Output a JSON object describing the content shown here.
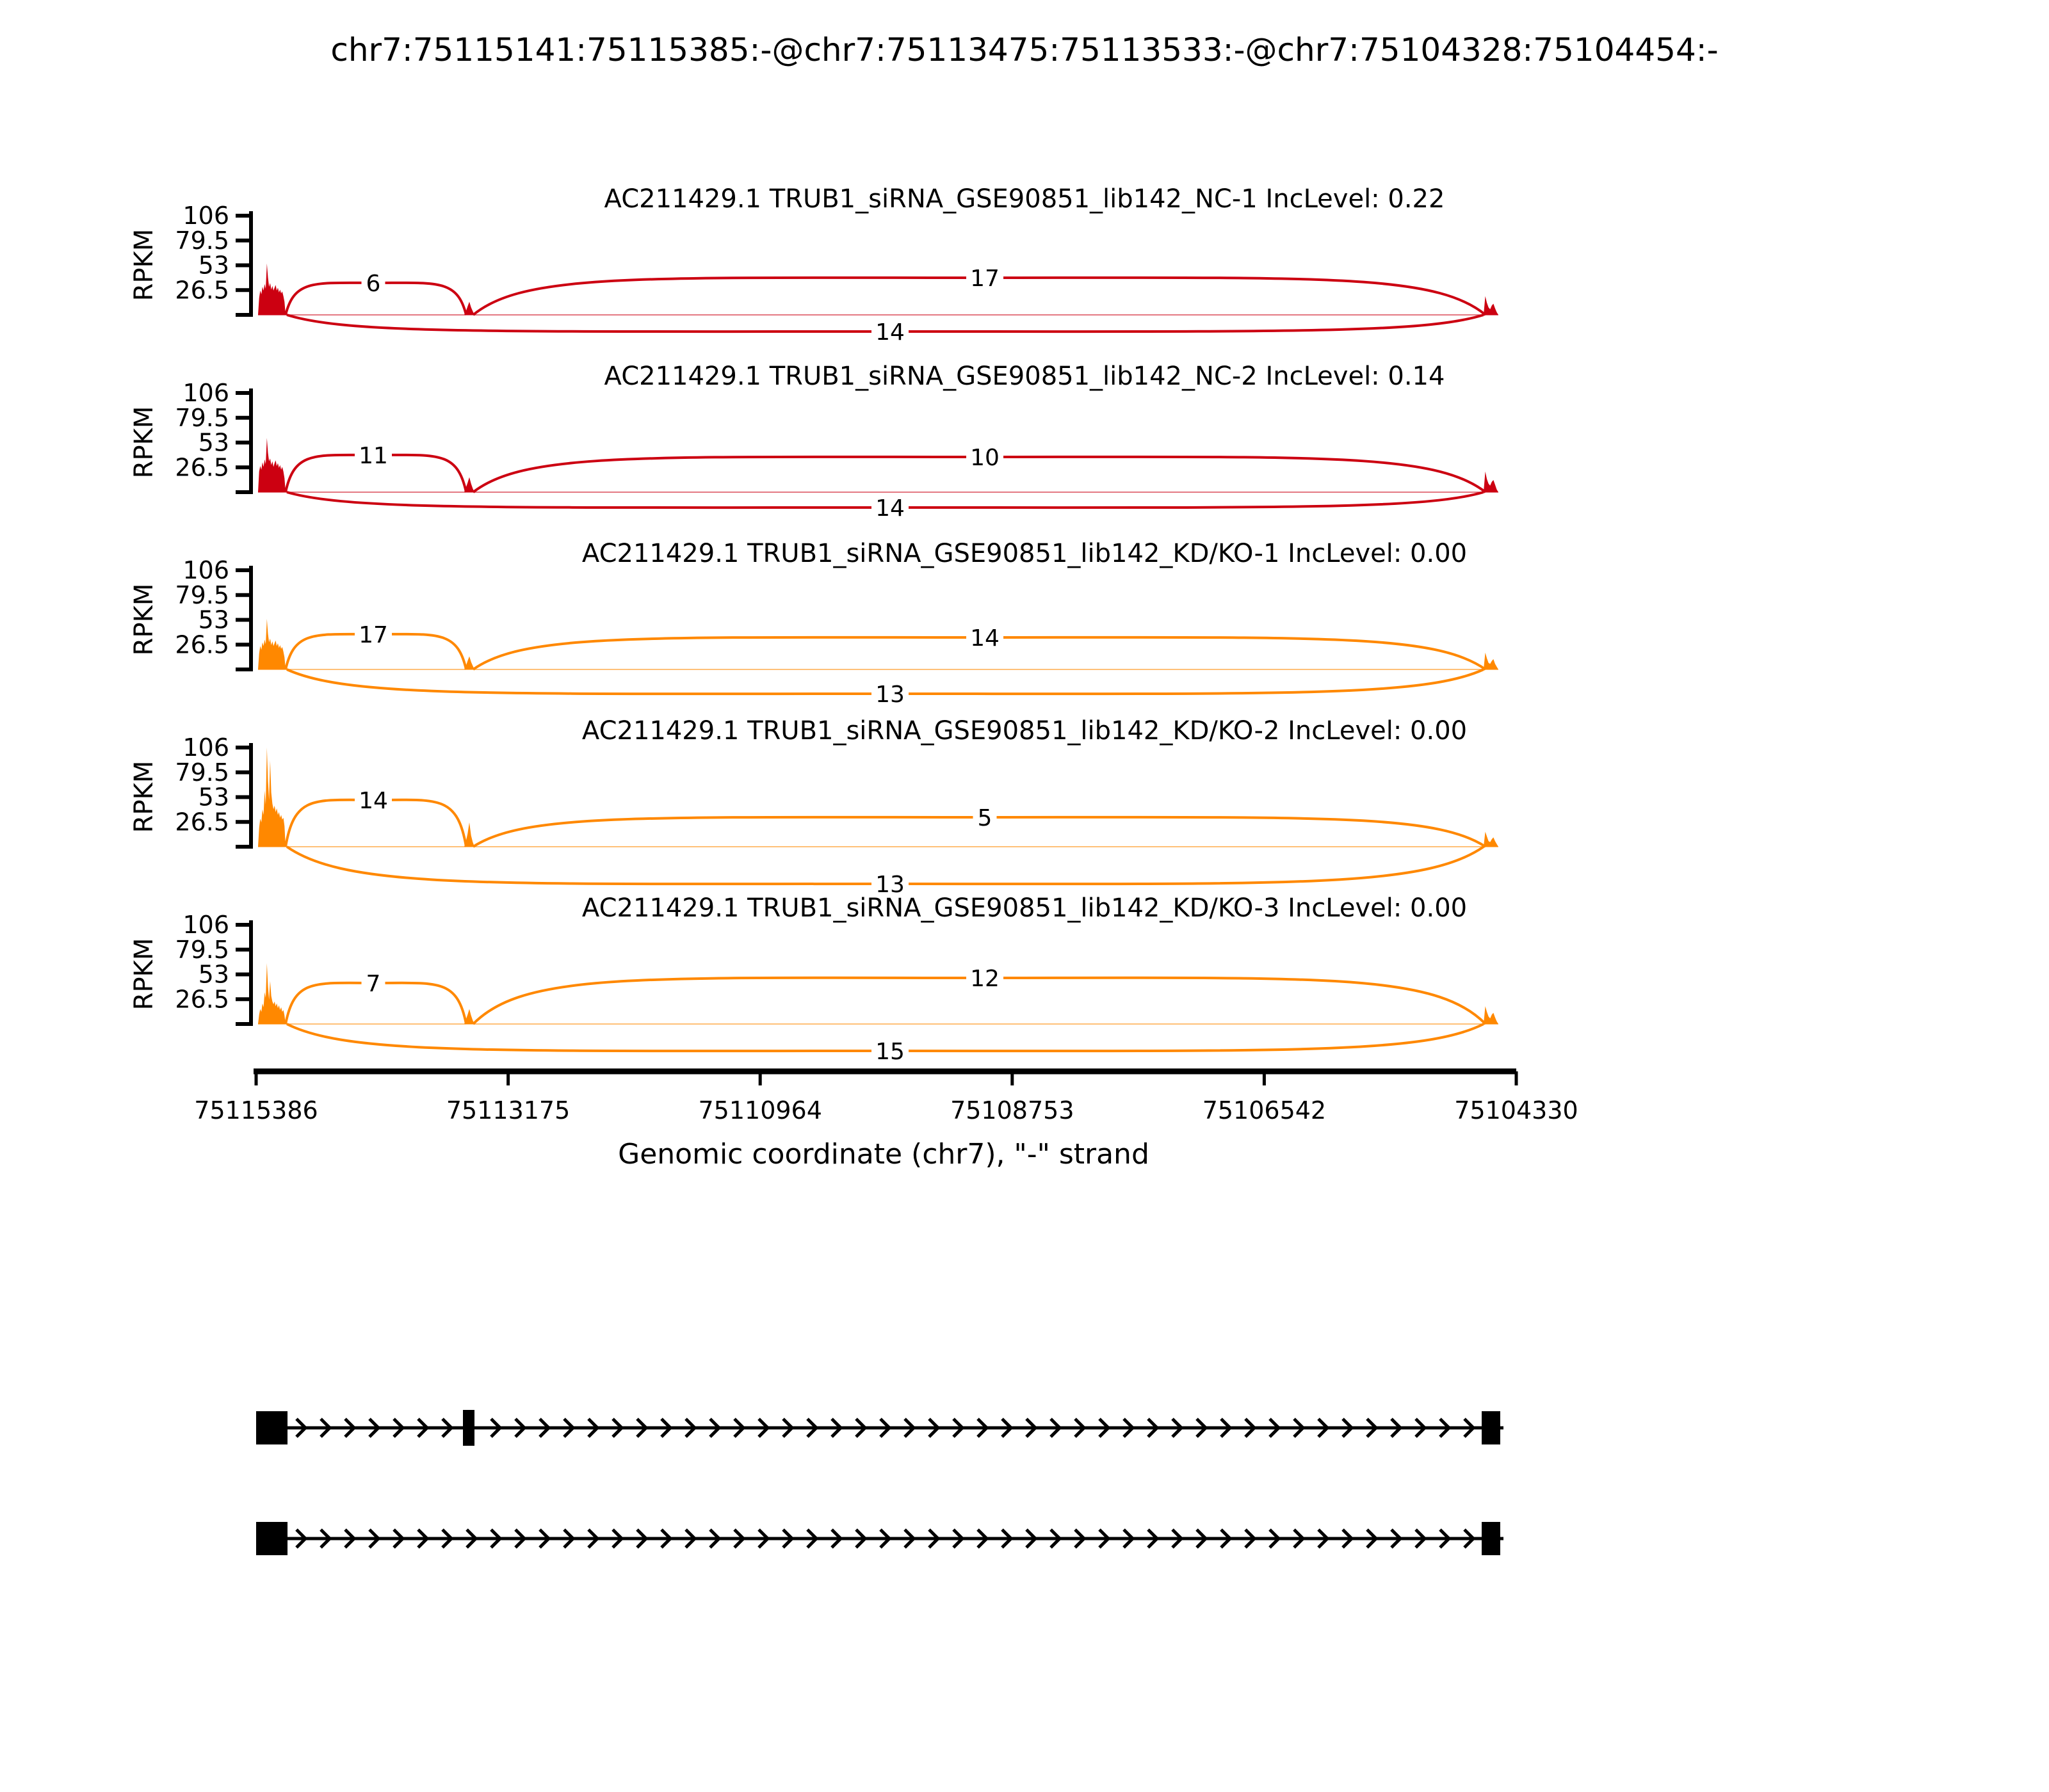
{
  "figure": {
    "background": "#ffffff",
    "axis_color": "#000000"
  },
  "chart_data": {
    "type": "area",
    "subtype": "sashimi-plot",
    "title": "chr7:75115141:75115385:-@chr7:75113475:75113533:-@chr7:75104328:75104454:-",
    "xlabel": "Genomic coordinate (chr7), \"-\" strand",
    "ylabel": "RPKM",
    "strand": "-",
    "chromosome": "chr7",
    "ymax": 106,
    "yticks": [
      26.5,
      53,
      79.5,
      106
    ],
    "xtick_labels": [
      "75115386",
      "75113175",
      "75110964",
      "75108753",
      "75106542",
      "75104330"
    ],
    "legend": "none",
    "grid": false,
    "colors": {
      "negative_control": "#CC0011",
      "knockdown": "#FF8800"
    },
    "tracks": [
      {
        "title": "AC211429.1 TRUB1_siRNA_GSE90851_lib142_NC-1 IncLevel: 0.22",
        "sample": "NC-1",
        "inc_level": "0.22",
        "color": "#CC0011",
        "junction_counts": {
          "e1_e2": "6",
          "e2_e3": "17",
          "e1_e3": "14"
        },
        "arc_heights": {
          "e1_e2": 50,
          "e2_e3": 58,
          "e1_e3": 26
        },
        "coverage_rpkm": {
          "e1": [
            0,
            18,
            26,
            22,
            30,
            26,
            33,
            28,
            55,
            40,
            30,
            34,
            27,
            31,
            26,
            29,
            32,
            26,
            29,
            24,
            27,
            23,
            25,
            20,
            14,
            0
          ],
          "e2": [
            0,
            4,
            9,
            14,
            8,
            4,
            0
          ],
          "e3": [
            0,
            20,
            13,
            8,
            6,
            10,
            12,
            7,
            3,
            0
          ]
        }
      },
      {
        "title": "AC211429.1 TRUB1_siRNA_GSE90851_lib142_NC-2 IncLevel: 0.14",
        "sample": "NC-2",
        "inc_level": "0.14",
        "color": "#CC0011",
        "junction_counts": {
          "e1_e2": "11",
          "e2_e3": "10",
          "e1_e3": "14"
        },
        "arc_heights": {
          "e1_e2": 58,
          "e2_e3": 55,
          "e1_e3": 24
        },
        "coverage_rpkm": {
          "e1": [
            0,
            22,
            28,
            24,
            32,
            27,
            35,
            30,
            58,
            42,
            33,
            36,
            29,
            33,
            27,
            31,
            34,
            28,
            31,
            26,
            29,
            24,
            27,
            22,
            15,
            0
          ],
          "e2": [
            0,
            5,
            10,
            16,
            9,
            4,
            0
          ],
          "e3": [
            0,
            22,
            14,
            9,
            7,
            11,
            13,
            8,
            3,
            0
          ]
        }
      },
      {
        "title": "AC211429.1 TRUB1_siRNA_GSE90851_lib142_KD/KO-1 IncLevel: 0.00",
        "sample": "KD/KO-1",
        "inc_level": "0.00",
        "color": "#FF8800",
        "junction_counts": {
          "e1_e2": "17",
          "e2_e3": "14",
          "e1_e3": "13"
        },
        "arc_heights": {
          "e1_e2": 55,
          "e2_e3": 50,
          "e1_e3": 38
        },
        "coverage_rpkm": {
          "e1": [
            0,
            17,
            25,
            21,
            29,
            25,
            32,
            27,
            54,
            38,
            29,
            33,
            26,
            30,
            25,
            28,
            31,
            25,
            28,
            23,
            26,
            22,
            24,
            19,
            13,
            0
          ],
          "e2": [
            0,
            4,
            9,
            14,
            8,
            4,
            0
          ],
          "e3": [
            0,
            18,
            12,
            7,
            6,
            9,
            11,
            6,
            3,
            0
          ]
        }
      },
      {
        "title": "AC211429.1 TRUB1_siRNA_GSE90851_lib142_KD/KO-2 IncLevel: 0.00",
        "sample": "KD/KO-2",
        "inc_level": "0.00",
        "color": "#FF8800",
        "junction_counts": {
          "e1_e2": "14",
          "e2_e3": "5",
          "e1_e3": "13"
        },
        "arc_heights": {
          "e1_e2": 73,
          "e2_e3": 46,
          "e1_e3": 58
        },
        "coverage_rpkm": {
          "e1": [
            0,
            20,
            30,
            26,
            40,
            34,
            60,
            45,
            106,
            70,
            50,
            92,
            58,
            46,
            40,
            44,
            37,
            41,
            34,
            37,
            31,
            34,
            29,
            31,
            22,
            0
          ],
          "e2": [
            0,
            6,
            14,
            26,
            12,
            5,
            0
          ],
          "e3": [
            0,
            16,
            11,
            6,
            5,
            8,
            10,
            6,
            3,
            0
          ]
        }
      },
      {
        "title": "AC211429.1 TRUB1_siRNA_GSE90851_lib142_KD/KO-3 IncLevel: 0.00",
        "sample": "KD/KO-3",
        "inc_level": "0.00",
        "color": "#FF8800",
        "junction_counts": {
          "e1_e2": "7",
          "e2_e3": "12",
          "e1_e3": "15"
        },
        "arc_heights": {
          "e1_e2": 64,
          "e2_e3": 72,
          "e1_e3": 42
        },
        "coverage_rpkm": {
          "e1": [
            0,
            10,
            16,
            13,
            22,
            18,
            34,
            28,
            65,
            40,
            26,
            46,
            30,
            24,
            21,
            24,
            19,
            22,
            17,
            20,
            15,
            18,
            13,
            15,
            9,
            0
          ],
          "e2": [
            0,
            5,
            10,
            16,
            9,
            4,
            0
          ],
          "e3": [
            0,
            19,
            13,
            8,
            6,
            10,
            12,
            7,
            3,
            0
          ]
        }
      }
    ],
    "transcripts": [
      {
        "name": "inclusion-isoform",
        "exons": [
          "e1",
          "e2",
          "e3"
        ]
      },
      {
        "name": "skipping-isoform",
        "exons": [
          "e1",
          "e3"
        ]
      }
    ]
  }
}
